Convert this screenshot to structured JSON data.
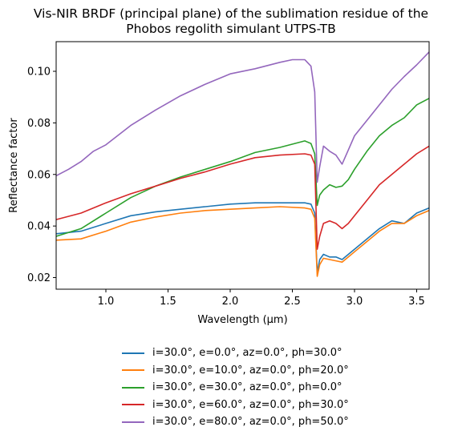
{
  "chart_data": {
    "type": "line",
    "title_line1": "Vis-NIR BRDF (principal plane) of the sublimation residue of the",
    "title_line2": "Phobos regolith simulant UTPS-TB",
    "xlabel": "Wavelength (μm)",
    "ylabel": "Reflectance factor",
    "xlim": [
      0.6,
      3.6
    ],
    "ylim": [
      0.0155,
      0.1115
    ],
    "xticks": [
      1.0,
      1.5,
      2.0,
      2.5,
      3.0,
      3.5
    ],
    "xtick_labels": [
      "1.0",
      "1.5",
      "2.0",
      "2.5",
      "3.0",
      "3.5"
    ],
    "yticks": [
      0.02,
      0.04,
      0.06,
      0.08,
      0.1
    ],
    "ytick_labels": [
      "0.02",
      "0.04",
      "0.06",
      "0.08",
      "0.10"
    ],
    "grid": false,
    "legend_position": "below",
    "series": [
      {
        "name": "i=30.0°, e=0.0°, az=0.0°, ph=30.0°",
        "color": "#1f77b4",
        "x": [
          0.6,
          0.8,
          1.0,
          1.2,
          1.4,
          1.6,
          1.8,
          2.0,
          2.2,
          2.4,
          2.6,
          2.65,
          2.68,
          2.7,
          2.72,
          2.75,
          2.8,
          2.85,
          2.9,
          2.95,
          3.0,
          3.1,
          3.2,
          3.3,
          3.4,
          3.5,
          3.6
        ],
        "y": [
          0.037,
          0.038,
          0.041,
          0.044,
          0.0455,
          0.0465,
          0.0475,
          0.0485,
          0.049,
          0.049,
          0.049,
          0.0485,
          0.045,
          0.022,
          0.027,
          0.029,
          0.028,
          0.028,
          0.027,
          0.029,
          0.031,
          0.035,
          0.039,
          0.042,
          0.041,
          0.045,
          0.047
        ]
      },
      {
        "name": "i=30.0°, e=10.0°, az=0.0°, ph=20.0°",
        "color": "#ff7f0e",
        "x": [
          0.6,
          0.8,
          1.0,
          1.2,
          1.4,
          1.6,
          1.8,
          2.0,
          2.2,
          2.4,
          2.6,
          2.65,
          2.68,
          2.7,
          2.72,
          2.75,
          2.8,
          2.85,
          2.9,
          2.95,
          3.0,
          3.1,
          3.2,
          3.3,
          3.4,
          3.5,
          3.6
        ],
        "y": [
          0.0345,
          0.035,
          0.038,
          0.0415,
          0.0435,
          0.045,
          0.046,
          0.0465,
          0.047,
          0.0475,
          0.047,
          0.0465,
          0.043,
          0.0205,
          0.025,
          0.0275,
          0.027,
          0.0265,
          0.026,
          0.028,
          0.03,
          0.034,
          0.038,
          0.041,
          0.041,
          0.044,
          0.046
        ]
      },
      {
        "name": "i=30.0°, e=30.0°, az=0.0°, ph=0.0°",
        "color": "#2ca02c",
        "x": [
          0.6,
          0.8,
          1.0,
          1.2,
          1.4,
          1.6,
          1.8,
          2.0,
          2.2,
          2.4,
          2.6,
          2.65,
          2.68,
          2.7,
          2.72,
          2.75,
          2.8,
          2.85,
          2.9,
          2.95,
          3.0,
          3.1,
          3.2,
          3.3,
          3.4,
          3.5,
          3.6
        ],
        "y": [
          0.036,
          0.039,
          0.045,
          0.051,
          0.0555,
          0.059,
          0.062,
          0.065,
          0.0685,
          0.0705,
          0.073,
          0.072,
          0.068,
          0.048,
          0.052,
          0.054,
          0.056,
          0.055,
          0.0555,
          0.058,
          0.062,
          0.069,
          0.075,
          0.079,
          0.082,
          0.087,
          0.0895
        ]
      },
      {
        "name": "i=30.0°, e=60.0°, az=0.0°, ph=30.0°",
        "color": "#d62728",
        "x": [
          0.6,
          0.8,
          1.0,
          1.2,
          1.4,
          1.6,
          1.8,
          2.0,
          2.2,
          2.4,
          2.6,
          2.65,
          2.68,
          2.7,
          2.72,
          2.75,
          2.8,
          2.85,
          2.9,
          2.95,
          3.0,
          3.1,
          3.2,
          3.3,
          3.4,
          3.5,
          3.6
        ],
        "y": [
          0.0425,
          0.045,
          0.049,
          0.0525,
          0.0555,
          0.0585,
          0.061,
          0.064,
          0.0665,
          0.0675,
          0.068,
          0.0675,
          0.064,
          0.031,
          0.036,
          0.041,
          0.042,
          0.041,
          0.039,
          0.041,
          0.044,
          0.05,
          0.056,
          0.06,
          0.064,
          0.068,
          0.071
        ]
      },
      {
        "name": "i=30.0°, e=80.0°, az=0.0°, ph=50.0°",
        "color": "#9467bd",
        "x": [
          0.6,
          0.7,
          0.8,
          0.9,
          1.0,
          1.2,
          1.4,
          1.6,
          1.8,
          2.0,
          2.2,
          2.4,
          2.5,
          2.6,
          2.65,
          2.68,
          2.7,
          2.72,
          2.75,
          2.8,
          2.85,
          2.9,
          2.95,
          3.0,
          3.1,
          3.2,
          3.3,
          3.4,
          3.5,
          3.6
        ],
        "y": [
          0.0595,
          0.062,
          0.065,
          0.069,
          0.0715,
          0.079,
          0.085,
          0.0905,
          0.095,
          0.099,
          0.101,
          0.1035,
          0.1045,
          0.1045,
          0.102,
          0.092,
          0.057,
          0.063,
          0.071,
          0.069,
          0.0675,
          0.064,
          0.0695,
          0.075,
          0.081,
          0.087,
          0.093,
          0.098,
          0.1025,
          0.1075
        ]
      }
    ]
  }
}
